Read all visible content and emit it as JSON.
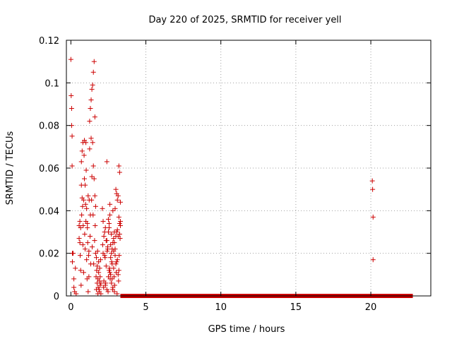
{
  "chart_data": {
    "type": "scatter",
    "title": "Day 220 of 2025, SRMTID for receiver yell",
    "xlabel": "GPS time / hours",
    "ylabel": "SRMTID / TECUs",
    "xlim": [
      -0.3,
      24
    ],
    "ylim": [
      0,
      0.12
    ],
    "x_ticks": [
      0,
      5,
      10,
      15,
      20
    ],
    "x_tick_labels": [
      "0",
      "5",
      "10",
      "15",
      "20"
    ],
    "y_ticks": [
      0,
      0.02,
      0.04,
      0.06,
      0.08,
      0.1,
      0.12
    ],
    "y_tick_labels": [
      "0",
      "0.02",
      "0.04",
      "0.06",
      "0.08",
      "0.1",
      "0.12"
    ],
    "grid": true,
    "marker": "plus",
    "color": "#cc0000",
    "zero_band": {
      "x_from": 3.3,
      "x_to": 22.8,
      "y": 0
    },
    "series": [
      {
        "name": "SRMTID",
        "x": [
          0.0,
          0.02,
          0.05,
          0.05,
          0.08,
          0.08,
          0.1,
          0.1,
          0.15,
          0.2,
          0.2,
          0.25,
          0.3,
          0.35,
          0.55,
          0.55,
          0.6,
          0.6,
          0.62,
          0.65,
          0.65,
          0.68,
          0.7,
          0.7,
          0.72,
          0.75,
          0.75,
          0.78,
          0.8,
          0.8,
          0.82,
          0.85,
          0.85,
          0.88,
          0.9,
          0.9,
          0.92,
          0.95,
          0.95,
          0.98,
          1.0,
          1.0,
          1.02,
          1.05,
          1.05,
          1.08,
          1.1,
          1.1,
          1.12,
          1.15,
          1.15,
          1.18,
          1.2,
          1.2,
          1.22,
          1.25,
          1.25,
          1.28,
          1.3,
          1.3,
          1.32,
          1.35,
          1.35,
          1.38,
          1.4,
          1.4,
          1.42,
          1.45,
          1.45,
          1.48,
          1.5,
          1.5,
          1.52,
          1.55,
          1.55,
          1.58,
          1.6,
          1.6,
          1.62,
          1.65,
          1.65,
          1.68,
          1.7,
          1.7,
          1.72,
          1.75,
          1.75,
          1.78,
          1.8,
          1.8,
          1.82,
          1.85,
          1.85,
          1.88,
          1.9,
          1.9,
          1.92,
          1.95,
          1.95,
          1.98,
          2.0,
          2.0,
          2.1,
          2.15,
          2.2,
          2.25,
          2.3,
          2.35,
          2.4,
          2.45,
          2.5,
          2.55,
          2.6,
          2.65,
          2.7,
          2.75,
          2.8,
          2.85,
          2.9,
          2.95,
          3.0,
          3.05,
          3.1,
          3.15,
          3.2,
          3.25,
          3.3,
          2.15,
          2.25,
          2.35,
          2.45,
          2.55,
          2.65,
          2.75,
          2.85,
          2.95,
          3.05,
          3.15,
          3.25,
          2.2,
          2.3,
          2.4,
          2.5,
          2.6,
          2.7,
          2.8,
          2.9,
          3.0,
          3.1,
          3.2,
          3.3,
          2.12,
          2.28,
          2.42,
          2.58,
          2.72,
          2.88,
          3.02,
          3.18,
          3.28,
          2.18,
          2.32,
          2.48,
          2.62,
          2.78,
          2.92,
          3.08,
          3.22,
          2.5,
          2.6,
          2.7,
          2.8,
          2.9,
          3.0,
          3.1,
          3.2,
          3.25,
          3.3,
          2.4,
          2.55,
          2.65,
          2.75,
          2.85,
          2.95,
          3.05,
          3.15,
          20.1,
          20.12,
          20.15,
          20.15
        ],
        "y": [
          0.111,
          0.094,
          0.088,
          0.08,
          0.075,
          0.061,
          0.02,
          0.016,
          0.02,
          0.008,
          0.004,
          0.002,
          0.013,
          0.001,
          0.033,
          0.027,
          0.035,
          0.025,
          0.019,
          0.032,
          0.012,
          0.005,
          0.063,
          0.052,
          0.038,
          0.068,
          0.046,
          0.042,
          0.072,
          0.024,
          0.033,
          0.045,
          0.011,
          0.066,
          0.055,
          0.073,
          0.029,
          0.052,
          0.022,
          0.043,
          0.035,
          0.072,
          0.059,
          0.041,
          0.017,
          0.008,
          0.032,
          0.034,
          0.025,
          0.002,
          0.047,
          0.019,
          0.021,
          0.009,
          0.045,
          0.082,
          0.069,
          0.028,
          0.088,
          0.038,
          0.015,
          0.092,
          0.074,
          0.045,
          0.097,
          0.056,
          0.023,
          0.099,
          0.072,
          0.038,
          0.105,
          0.061,
          0.015,
          0.11,
          0.055,
          0.026,
          0.084,
          0.047,
          0.033,
          0.042,
          0.02,
          0.009,
          0.018,
          0.003,
          0.012,
          0.006,
          0.014,
          0.021,
          0.001,
          0.008,
          0.004,
          0.011,
          0.016,
          0.003,
          0.007,
          0.002,
          0.013,
          0.005,
          0.009,
          0.017,
          0.001,
          0.006,
          0.041,
          0.035,
          0.028,
          0.03,
          0.032,
          0.026,
          0.063,
          0.022,
          0.03,
          0.034,
          0.043,
          0.018,
          0.02,
          0.015,
          0.025,
          0.027,
          0.03,
          0.041,
          0.05,
          0.048,
          0.045,
          0.047,
          0.061,
          0.058,
          0.044,
          0.02,
          0.019,
          0.014,
          0.023,
          0.012,
          0.01,
          0.008,
          0.013,
          0.022,
          0.016,
          0.01,
          0.034,
          0.007,
          0.005,
          0.003,
          0.009,
          0.011,
          0.006,
          0.004,
          0.002,
          0.015,
          0.017,
          0.012,
          0.033,
          0.024,
          0.018,
          0.021,
          0.013,
          0.016,
          0.009,
          0.011,
          0.007,
          0.027,
          0.004,
          0.006,
          0.002,
          0.008,
          0.003,
          0.005,
          0.001,
          0.019,
          0.036,
          0.038,
          0.029,
          0.04,
          0.025,
          0.028,
          0.031,
          0.037,
          0.029,
          0.035,
          0.026,
          0.032,
          0.024,
          0.022,
          0.021,
          0.019,
          0.03,
          0.028,
          0.054,
          0.05,
          0.037,
          0.017
        ]
      }
    ]
  }
}
